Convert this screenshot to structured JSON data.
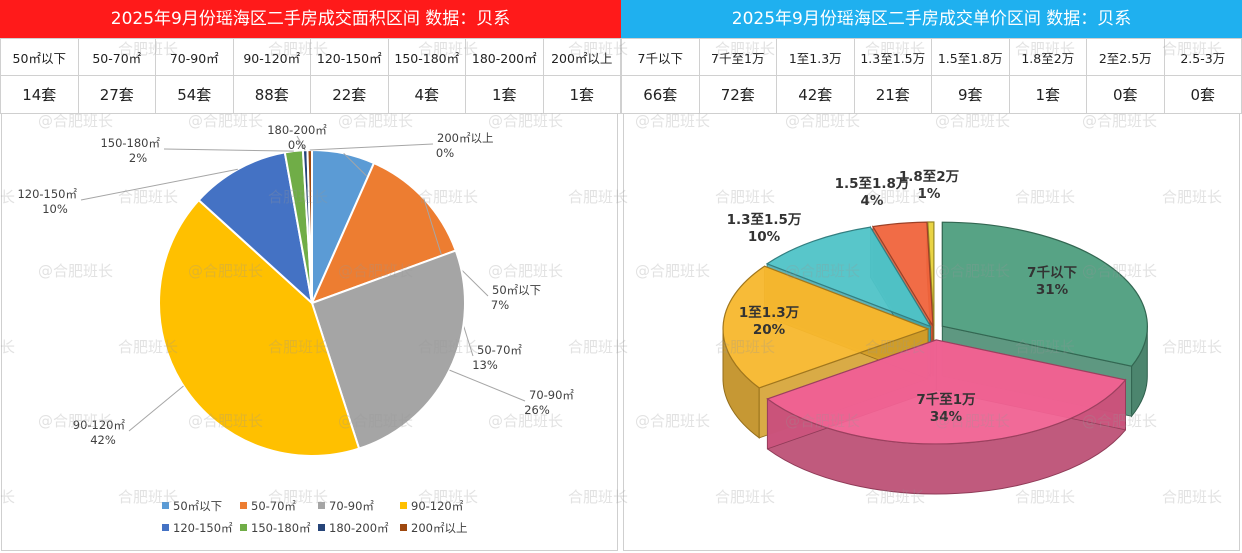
{
  "header": {
    "left_title": "2025年9月份瑶海区二手房成交面积区间 数据：贝系",
    "right_title": "2025年9月份瑶海区二手房成交单价区间 数据：贝系",
    "left_color": "#ff1a1a",
    "right_color": "#1fb0ef"
  },
  "area_table": {
    "labels": [
      "50㎡以下",
      "50-70㎡",
      "70-90㎡",
      "90-120㎡",
      "120-150㎡",
      "150-180㎡",
      "180-200㎡",
      "200㎡以上"
    ],
    "values": [
      "14套",
      "27套",
      "54套",
      "88套",
      "22套",
      "4套",
      "1套",
      "1套"
    ]
  },
  "price_table": {
    "labels": [
      "7千以下",
      "7千至1万",
      "1至1.3万",
      "1.3至1.5万",
      "1.5至1.8万",
      "1.8至2万",
      "2至2.5万",
      "2.5-3万"
    ],
    "values": [
      "66套",
      "72套",
      "42套",
      "21套",
      "9套",
      "1套",
      "0套",
      "0套"
    ]
  },
  "watermark": {
    "text": "@合肥班长",
    "short": "合肥班长",
    "tail": "长"
  },
  "chart_data": [
    {
      "type": "pie",
      "title": "2025年9月份瑶海区二手房成交面积区间",
      "categories": [
        "50㎡以下",
        "50-70㎡",
        "70-90㎡",
        "90-120㎡",
        "120-150㎡",
        "150-180㎡",
        "180-200㎡",
        "200㎡以上"
      ],
      "values": [
        14,
        27,
        54,
        88,
        22,
        4,
        1,
        1
      ],
      "percent_labels": [
        "7%",
        "13%",
        "26%",
        "42%",
        "10%",
        "2%",
        "0%",
        "0%"
      ],
      "colors": [
        "#5b9bd5",
        "#ed7d31",
        "#a5a5a5",
        "#ffc000",
        "#4472c4",
        "#70ad47",
        "#264478",
        "#9e480e"
      ],
      "legend_position": "bottom"
    },
    {
      "type": "pie",
      "title": "2025年9月份瑶海区二手房成交单价区间",
      "categories": [
        "7千以下",
        "7千至1万",
        "1至1.3万",
        "1.3至1.5万",
        "1.5至1.8万",
        "1.8至2万"
      ],
      "values": [
        66,
        72,
        42,
        21,
        9,
        1
      ],
      "percent_labels": [
        "31%",
        "34%",
        "20%",
        "10%",
        "4%",
        "1%"
      ],
      "colors": [
        "#4e9e7e",
        "#f06292",
        "#f7b72d",
        "#4fc3c7",
        "#f0643c",
        "#e8d23a"
      ],
      "style": "3d-exploded"
    }
  ]
}
